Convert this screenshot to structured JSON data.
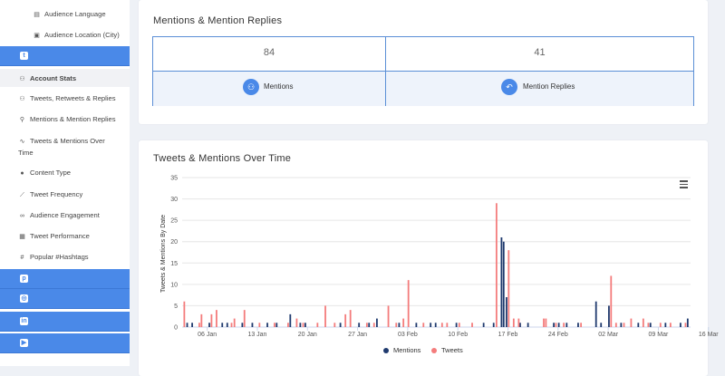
{
  "sidebar": {
    "sub_items": [
      "Audience Language",
      "Audience Location (City)"
    ],
    "active_label": "Account Stats",
    "twitter_items": [
      "Tweets, Retweets & Replies",
      "Mentions & Mention Replies",
      "Tweets & Mentions Over",
      "Time",
      "Content Type",
      "Tweet Frequency",
      "Audience Engagement",
      "Tweet Performance",
      "Popular #Hashtags"
    ],
    "networks": [
      "twitter",
      "pinterest",
      "instagram",
      "linkedin",
      "youtube"
    ]
  },
  "mentions_card": {
    "title": "Mentions & Mention Replies",
    "mentions_value": "84",
    "mentions_label": "Mentions",
    "replies_value": "41",
    "replies_label": "Mention Replies"
  },
  "chart_card": {
    "title": "Tweets & Mentions Over Time",
    "menu_icon": "hamburger-icon"
  },
  "chart_data": {
    "type": "bar",
    "title": "Tweets & Mentions Over Time",
    "ylabel": "Tweets & Mentions By Date",
    "xlabel": "",
    "ylim": [
      0,
      35
    ],
    "y_ticks": [
      0,
      5,
      10,
      15,
      20,
      25,
      30,
      35
    ],
    "x_tick_labels": [
      "06 Jan",
      "13 Jan",
      "20 Jan",
      "27 Jan",
      "03 Feb",
      "10 Feb",
      "17 Feb",
      "24 Feb",
      "02 Mar",
      "09 Mar",
      "16 Mar"
    ],
    "legend": {
      "position": "bottom"
    },
    "colors": {
      "Mentions": "#1f3a6e",
      "Tweets": "#f47c7c"
    },
    "series": [
      {
        "name": "Mentions",
        "values": [
          [
            0.7,
            1
          ],
          [
            1.4,
            1
          ],
          [
            3.8,
            1
          ],
          [
            5.6,
            1
          ],
          [
            6.3,
            1
          ],
          [
            8.4,
            1
          ],
          [
            9.8,
            1
          ],
          [
            11.9,
            1
          ],
          [
            13.2,
            1
          ],
          [
            15.1,
            3
          ],
          [
            16.5,
            1
          ],
          [
            17.2,
            1
          ],
          [
            22.1,
            1
          ],
          [
            24.7,
            1
          ],
          [
            26.1,
            1
          ],
          [
            27.2,
            2
          ],
          [
            30.3,
            1
          ],
          [
            32.7,
            1
          ],
          [
            34.7,
            1
          ],
          [
            35.4,
            1
          ],
          [
            38.3,
            1
          ],
          [
            42.1,
            1
          ],
          [
            43.5,
            1
          ],
          [
            44.6,
            21
          ],
          [
            44.9,
            20
          ],
          [
            45.3,
            7
          ],
          [
            47.2,
            1
          ],
          [
            48.3,
            1
          ],
          [
            51.9,
            1
          ],
          [
            52.6,
            1
          ],
          [
            53.7,
            1
          ],
          [
            55.3,
            1
          ],
          [
            57.8,
            6
          ],
          [
            58.5,
            1
          ],
          [
            59.6,
            5
          ],
          [
            61.3,
            1
          ],
          [
            63.7,
            1
          ],
          [
            65.4,
            1
          ],
          [
            67.5,
            1
          ],
          [
            69.6,
            1
          ],
          [
            70.6,
            2
          ]
        ]
      },
      {
        "name": "Tweets",
        "values": [
          [
            0.3,
            6
          ],
          [
            2.4,
            1
          ],
          [
            2.7,
            3
          ],
          [
            4.1,
            3
          ],
          [
            4.8,
            4
          ],
          [
            6.9,
            1
          ],
          [
            7.3,
            2
          ],
          [
            8.7,
            4
          ],
          [
            10.8,
            1
          ],
          [
            12.9,
            1
          ],
          [
            14.8,
            1
          ],
          [
            16.0,
            2
          ],
          [
            16.9,
            1
          ],
          [
            18.9,
            1
          ],
          [
            20.0,
            5
          ],
          [
            21.3,
            1
          ],
          [
            22.8,
            3
          ],
          [
            23.5,
            4
          ],
          [
            25.8,
            1
          ],
          [
            26.8,
            1
          ],
          [
            28.8,
            5
          ],
          [
            29.9,
            1
          ],
          [
            30.9,
            2
          ],
          [
            31.6,
            11
          ],
          [
            33.7,
            1
          ],
          [
            36.3,
            1
          ],
          [
            37.0,
            1
          ],
          [
            38.7,
            1
          ],
          [
            40.5,
            1
          ],
          [
            43.9,
            29
          ],
          [
            45.6,
            18
          ],
          [
            46.3,
            2
          ],
          [
            47.0,
            2
          ],
          [
            50.5,
            2
          ],
          [
            50.8,
            2
          ],
          [
            52.2,
            1
          ],
          [
            53.3,
            1
          ],
          [
            55.7,
            1
          ],
          [
            59.9,
            12
          ],
          [
            60.6,
            1
          ],
          [
            61.7,
            1
          ],
          [
            62.7,
            2
          ],
          [
            64.4,
            2
          ],
          [
            65.1,
            1
          ],
          [
            66.8,
            1
          ],
          [
            68.2,
            1
          ],
          [
            70.3,
            1
          ]
        ]
      }
    ]
  }
}
